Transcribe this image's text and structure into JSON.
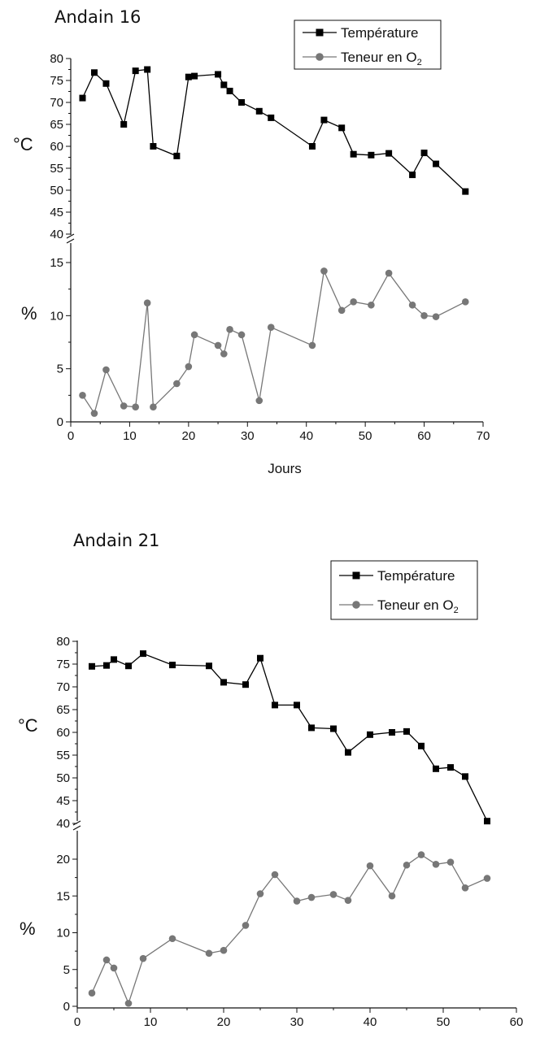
{
  "chart_data": [
    {
      "type": "line",
      "title": "Andain 16",
      "xlabel": "Jours",
      "xlim": [
        0,
        70
      ],
      "xticks": [
        0,
        10,
        20,
        30,
        40,
        50,
        60,
        70
      ],
      "legend_position": "top-right",
      "series": [
        {
          "name": "Température",
          "unit_label": "°C",
          "color": "#000000",
          "marker": "square",
          "ylim": [
            40,
            80
          ],
          "yticks": [
            40,
            45,
            50,
            55,
            60,
            65,
            70,
            75,
            80
          ],
          "x": [
            2,
            4,
            6,
            9,
            11,
            13,
            14,
            18,
            20,
            21,
            25,
            26,
            27,
            29,
            32,
            34,
            41,
            43,
            46,
            48,
            51,
            54,
            58,
            60,
            62,
            67
          ],
          "y": [
            71,
            76.8,
            74.3,
            65,
            77.2,
            77.5,
            60,
            57.8,
            75.8,
            76,
            76.4,
            74,
            72.6,
            70,
            68,
            66.5,
            60,
            66,
            64.2,
            58.2,
            58,
            58.4,
            53.5,
            58.5,
            56,
            49.7
          ]
        },
        {
          "name": "Teneur en O",
          "name_subscript": "2",
          "unit_label": "%",
          "color": "#777777",
          "marker": "circle",
          "ylim": [
            0,
            15
          ],
          "yticks": [
            0,
            5,
            10,
            15
          ],
          "x": [
            2,
            4,
            6,
            9,
            11,
            13,
            14,
            18,
            20,
            21,
            25,
            26,
            27,
            29,
            32,
            34,
            41,
            43,
            46,
            48,
            51,
            54,
            58,
            60,
            62,
            67
          ],
          "y": [
            2.5,
            0.8,
            4.9,
            1.5,
            1.4,
            11.2,
            1.4,
            3.6,
            5.2,
            8.2,
            7.2,
            6.4,
            8.7,
            8.2,
            2,
            8.9,
            7.2,
            14.2,
            10.5,
            11.3,
            11,
            14,
            11,
            10,
            9.9,
            11.3
          ]
        }
      ]
    },
    {
      "type": "line",
      "title": "Andain 21",
      "xlabel": "",
      "xlim": [
        0,
        60
      ],
      "xticks": [
        0,
        10,
        20,
        30,
        40,
        50,
        60
      ],
      "legend_position": "top-right",
      "series": [
        {
          "name": "Température",
          "unit_label": "°C",
          "color": "#000000",
          "marker": "square",
          "ylim": [
            40,
            80
          ],
          "yticks": [
            40,
            45,
            50,
            55,
            60,
            65,
            70,
            75,
            80
          ],
          "x": [
            2,
            4,
            5,
            7,
            9,
            13,
            18,
            20,
            23,
            25,
            27,
            30,
            32,
            35,
            37,
            40,
            43,
            45,
            47,
            49,
            51,
            53,
            56
          ],
          "y": [
            74.5,
            74.7,
            76,
            74.6,
            77.3,
            74.8,
            74.6,
            71,
            70.5,
            76.3,
            66,
            66,
            61,
            60.8,
            55.6,
            59.5,
            60,
            60.2,
            57,
            52,
            52.3,
            50.3,
            40.5
          ]
        },
        {
          "name": "Teneur en O",
          "name_subscript": "2",
          "unit_label": "%",
          "color": "#777777",
          "marker": "circle",
          "ylim": [
            0,
            20
          ],
          "yticks": [
            0,
            5,
            10,
            15,
            20
          ],
          "x": [
            2,
            4,
            5,
            7,
            9,
            13,
            18,
            20,
            23,
            25,
            27,
            30,
            32,
            35,
            37,
            40,
            43,
            45,
            47,
            49,
            51,
            53,
            56
          ],
          "y": [
            1.8,
            6.3,
            5.2,
            0.4,
            6.5,
            9.2,
            7.2,
            7.6,
            11,
            15.3,
            17.9,
            14.3,
            14.8,
            15.2,
            14.4,
            19.1,
            15,
            19.2,
            20.6,
            19.3,
            19.6,
            16.1,
            17.4
          ]
        }
      ]
    }
  ]
}
